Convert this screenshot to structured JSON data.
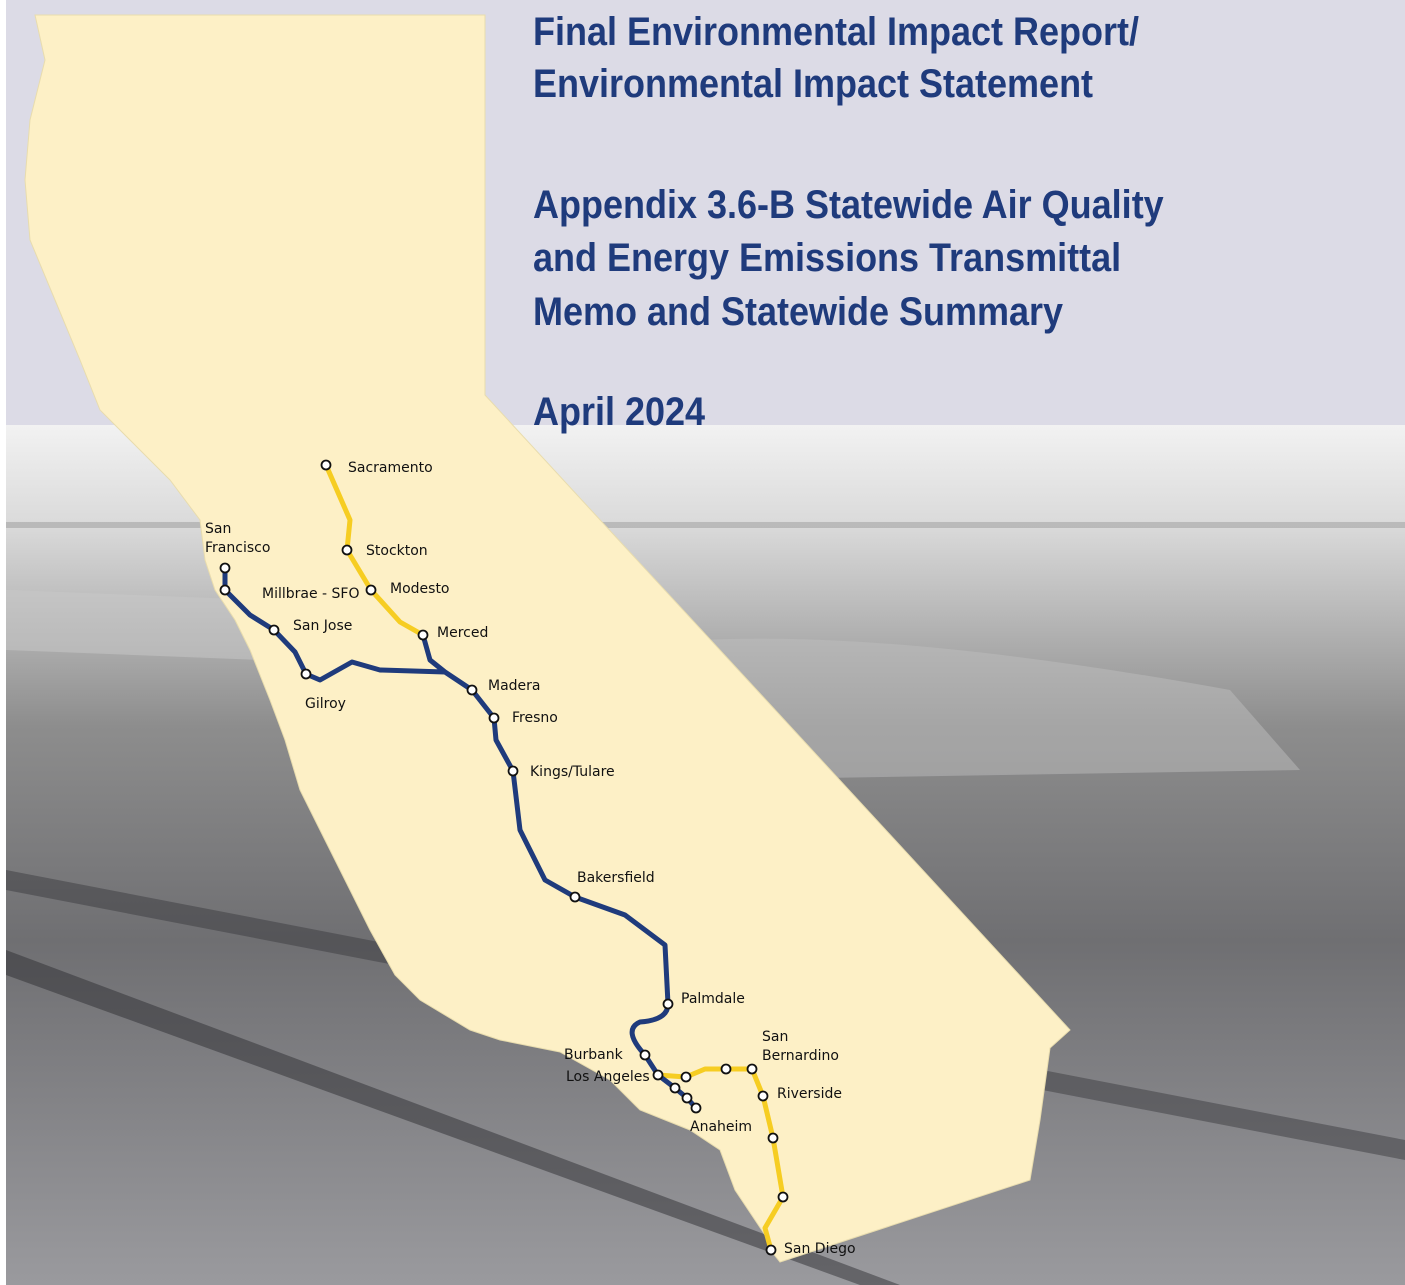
{
  "title_lines": [
    "Final Environmental Impact Report/",
    "Environmental Impact Statement"
  ],
  "appendix_lines": [
    "Appendix 3.6-B Statewide Air Quality",
    "and Energy Emissions Transmittal",
    "Memo and Statewide Summary"
  ],
  "date": "April 2024",
  "station_labels": [
    [
      "Sacramento"
    ],
    [
      "Stockton"
    ],
    [
      "Modesto"
    ],
    [
      "Merced"
    ],
    [
      "San",
      "Francisco"
    ],
    [
      "Millbrae - SFO"
    ],
    [
      "San Jose"
    ],
    [
      "Gilroy"
    ],
    [
      "Madera"
    ],
    [
      "Fresno"
    ],
    [
      "Kings/Tulare"
    ],
    [
      "Bakersfield"
    ],
    [
      "Palmdale"
    ],
    [
      "Burbank"
    ],
    [
      "Los Angeles"
    ],
    [
      "Anaheim"
    ],
    [
      "San",
      "Bernardino"
    ],
    [
      "Riverside"
    ],
    [
      "San Diego"
    ]
  ]
}
